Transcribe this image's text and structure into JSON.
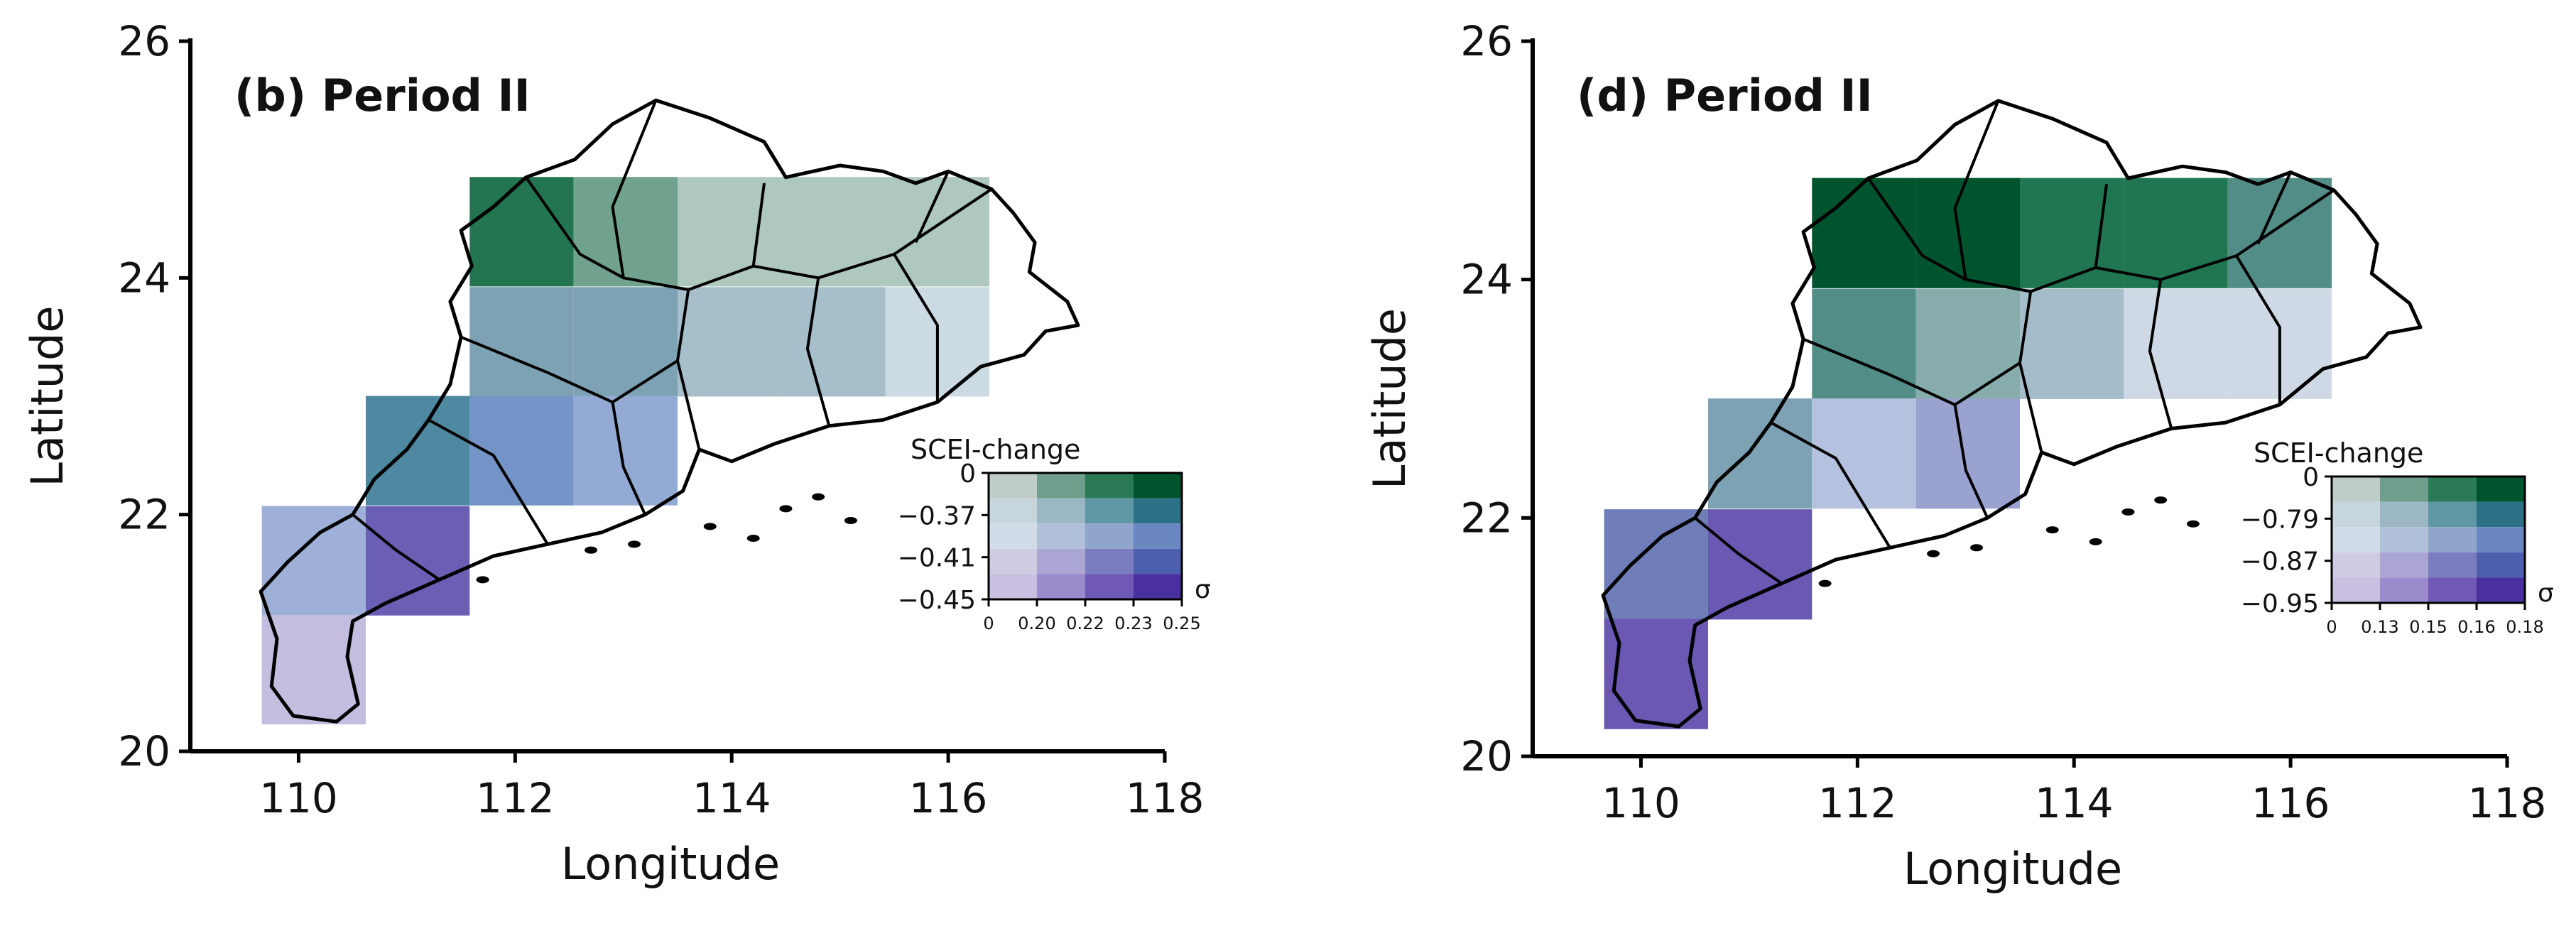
{
  "panels": [
    {
      "title": "(b) Period II",
      "xlabel": "Longitude",
      "ylabel": "Latitude",
      "xlim": [
        109,
        118
      ],
      "ylim": [
        20,
        26
      ],
      "xticks": [
        "110",
        "112",
        "114",
        "116",
        "118"
      ],
      "xtick_values": [
        110,
        112,
        114,
        116,
        118
      ],
      "yticks": [
        "20",
        "22",
        "24",
        "26"
      ],
      "ytick_values": [
        20,
        22,
        24,
        26
      ],
      "cells": [
        {
          "lon": 112.06,
          "lat": 24.39,
          "color": "#22754f"
        },
        {
          "lon": 113.02,
          "lat": 24.39,
          "color": "#71a28d"
        },
        {
          "lon": 113.98,
          "lat": 24.39,
          "color": "#aec8bd"
        },
        {
          "lon": 114.94,
          "lat": 24.39,
          "color": "#aec8bd"
        },
        {
          "lon": 115.9,
          "lat": 24.39,
          "color": "#aec8bd"
        },
        {
          "lon": 112.06,
          "lat": 23.46,
          "color": "#7ca2b3"
        },
        {
          "lon": 113.02,
          "lat": 23.46,
          "color": "#7ca2b3"
        },
        {
          "lon": 113.98,
          "lat": 23.46,
          "color": "#a6bfcb"
        },
        {
          "lon": 114.94,
          "lat": 23.46,
          "color": "#a6bfcb"
        },
        {
          "lon": 115.9,
          "lat": 23.46,
          "color": "#ccdae3"
        },
        {
          "lon": 111.1,
          "lat": 22.54,
          "color": "#4e89a1"
        },
        {
          "lon": 112.06,
          "lat": 22.54,
          "color": "#7494c7"
        },
        {
          "lon": 113.02,
          "lat": 22.54,
          "color": "#93abd4"
        },
        {
          "lon": 110.14,
          "lat": 21.61,
          "color": "#9eb0d8"
        },
        {
          "lon": 111.1,
          "lat": 21.61,
          "color": "#6b5fb5"
        },
        {
          "lon": 110.14,
          "lat": 20.69,
          "color": "#c4bde0"
        }
      ],
      "legend": {
        "title": "SCEI-change",
        "yticks": [
          "0",
          "−0.37",
          "−0.41",
          "−0.45"
        ],
        "xticks": [
          "0",
          "0.20",
          "0.22",
          "0.23",
          "0.25"
        ],
        "sigma": "σ"
      }
    },
    {
      "title": "(d) Period II",
      "xlabel": "Longitude",
      "ylabel": "Latitude",
      "xlim": [
        109,
        118
      ],
      "ylim": [
        20,
        26
      ],
      "xticks": [
        "110",
        "112",
        "114",
        "116",
        "118"
      ],
      "xtick_values": [
        110,
        112,
        114,
        116,
        118
      ],
      "yticks": [
        "20",
        "22",
        "24",
        "26"
      ],
      "ytick_values": [
        20,
        22,
        24,
        26
      ],
      "cells": [
        {
          "lon": 112.06,
          "lat": 24.39,
          "color": "#00542d"
        },
        {
          "lon": 113.02,
          "lat": 24.39,
          "color": "#00542d"
        },
        {
          "lon": 113.98,
          "lat": 24.39,
          "color": "#1f7651"
        },
        {
          "lon": 114.94,
          "lat": 24.39,
          "color": "#1f7651"
        },
        {
          "lon": 115.9,
          "lat": 24.39,
          "color": "#528e87"
        },
        {
          "lon": 112.06,
          "lat": 23.46,
          "color": "#528e87"
        },
        {
          "lon": 113.02,
          "lat": 23.46,
          "color": "#86adab"
        },
        {
          "lon": 113.98,
          "lat": 23.46,
          "color": "#a5bdca"
        },
        {
          "lon": 114.94,
          "lat": 23.46,
          "color": "#cfd9e6"
        },
        {
          "lon": 115.9,
          "lat": 23.46,
          "color": "#cfd9e6"
        },
        {
          "lon": 111.1,
          "lat": 22.54,
          "color": "#7ca2b3"
        },
        {
          "lon": 112.06,
          "lat": 22.54,
          "color": "#b4c2df"
        },
        {
          "lon": 113.02,
          "lat": 22.54,
          "color": "#9aa2cf"
        },
        {
          "lon": 110.14,
          "lat": 21.61,
          "color": "#6f7db8"
        },
        {
          "lon": 111.1,
          "lat": 21.61,
          "color": "#6a58b3"
        },
        {
          "lon": 110.14,
          "lat": 20.69,
          "color": "#6a58b3"
        }
      ],
      "legend": {
        "title": "SCEI-change",
        "yticks": [
          "0",
          "−0.79",
          "−0.87",
          "−0.95"
        ],
        "xticks": [
          "0",
          "0.13",
          "0.15",
          "0.16",
          "0.18"
        ],
        "sigma": "σ"
      }
    }
  ],
  "legend_palette": [
    [
      "#c0ccc8",
      "#6f9f8c",
      "#2a7a56",
      "#00542d"
    ],
    [
      "#c7d5dc",
      "#9bb7c3",
      "#5f97a5",
      "#2d7187"
    ],
    [
      "#d2dbe8",
      "#b0c0d8",
      "#8fa5cc",
      "#6b87c2"
    ],
    [
      "#cfcbe3",
      "#aaa5d3",
      "#7c7dc0",
      "#4e5fae"
    ],
    [
      "#c9bfe1",
      "#9b8bcc",
      "#6f59b4",
      "#4a2f9e"
    ]
  ]
}
